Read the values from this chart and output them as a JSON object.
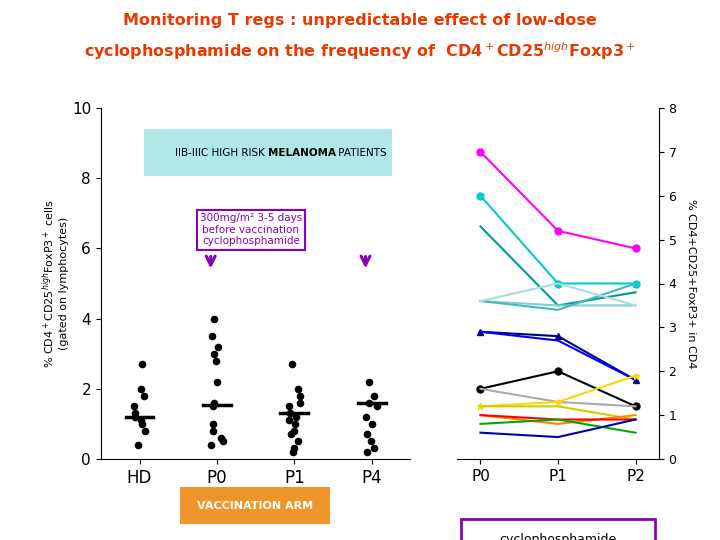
{
  "title_line1": "Monitoring T regs : unpredictable effect of low-dose",
  "title_line2": "cyclophosphamide on the frequency of  CD4+CD25highFoxp3+",
  "title_color": "#E83A00",
  "bg_color": "#FFFFFF",
  "annotation_color": "#8B00BB",
  "vacc_arm_color": "#F0952A",
  "vacc_arm_text": "VACCINATION ARM",
  "melanoma_box_color": "#B0E8E8",
  "left_xticks": [
    "HD",
    "P0",
    "P1",
    "P4"
  ],
  "left_ylim": [
    0,
    10
  ],
  "left_yticks": [
    0,
    2,
    4,
    6,
    8,
    10
  ],
  "left_scatter": {
    "HD": [
      0.4,
      0.8,
      1.0,
      1.1,
      1.2,
      1.3,
      1.5,
      1.8,
      2.0,
      2.7
    ],
    "P0": [
      0.4,
      0.5,
      0.6,
      0.8,
      1.0,
      1.5,
      1.6,
      2.2,
      2.8,
      3.0,
      3.2,
      3.5,
      4.0
    ],
    "P1": [
      0.2,
      0.3,
      0.5,
      0.7,
      0.8,
      1.0,
      1.1,
      1.2,
      1.3,
      1.5,
      1.6,
      1.8,
      2.0,
      2.7
    ],
    "P4": [
      0.2,
      0.3,
      0.5,
      0.7,
      1.0,
      1.2,
      1.5,
      1.6,
      1.8,
      2.2
    ]
  },
  "left_medians": {
    "HD": 1.2,
    "P0": 1.55,
    "P1": 1.3,
    "P4": 1.6
  },
  "right_lines": [
    {
      "color": "#FF00FF",
      "values": [
        7.0,
        5.2,
        4.8
      ],
      "marker": "o"
    },
    {
      "color": "#00CCCC",
      "values": [
        6.0,
        4.0,
        4.0
      ],
      "marker": "o"
    },
    {
      "color": "#009999",
      "values": [
        5.3,
        3.5,
        3.8
      ],
      "marker": "none"
    },
    {
      "color": "#88CCCC",
      "values": [
        3.6,
        3.5,
        3.5
      ],
      "marker": "none"
    },
    {
      "color": "#44BBBB",
      "values": [
        3.6,
        3.4,
        4.0
      ],
      "marker": "none"
    },
    {
      "color": "#AADDDD",
      "values": [
        3.6,
        4.0,
        3.5
      ],
      "marker": "none"
    },
    {
      "color": "#000080",
      "values": [
        2.9,
        2.8,
        1.8
      ],
      "marker": "^"
    },
    {
      "color": "#0000FF",
      "values": [
        2.9,
        2.7,
        1.8
      ],
      "marker": "none"
    },
    {
      "color": "#000000",
      "values": [
        1.6,
        2.0,
        1.2
      ],
      "marker": "o"
    },
    {
      "color": "#AAAAAA",
      "values": [
        1.6,
        1.3,
        1.2
      ],
      "marker": "none"
    },
    {
      "color": "#FFD700",
      "values": [
        1.2,
        1.3,
        1.9
      ],
      "marker": "*"
    },
    {
      "color": "#CCCC00",
      "values": [
        1.2,
        1.2,
        0.9
      ],
      "marker": "none"
    },
    {
      "color": "#FF8800",
      "values": [
        1.0,
        0.8,
        1.0
      ],
      "marker": "none"
    },
    {
      "color": "#FF0000",
      "values": [
        1.0,
        0.9,
        0.9
      ],
      "marker": "none"
    },
    {
      "color": "#00AA00",
      "values": [
        0.8,
        0.9,
        0.6
      ],
      "marker": "none"
    },
    {
      "color": "#0000AA",
      "values": [
        0.6,
        0.5,
        0.9
      ],
      "marker": "none"
    }
  ],
  "right_xticks": [
    "P0",
    "P1",
    "P2"
  ],
  "right_ylim": [
    0,
    8
  ],
  "right_yticks": [
    0,
    1,
    2,
    3,
    4,
    5,
    6,
    7,
    8
  ]
}
